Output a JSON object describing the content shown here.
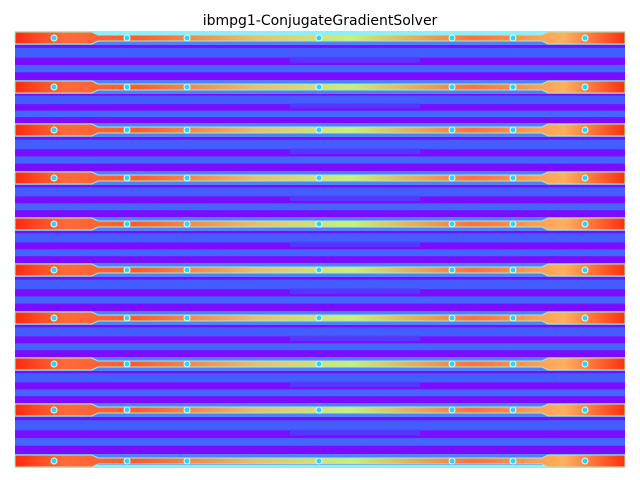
{
  "chart_data": {
    "type": "heatmap",
    "title": "ibmpg1-ConjugateGradientSolver"
  }
}
